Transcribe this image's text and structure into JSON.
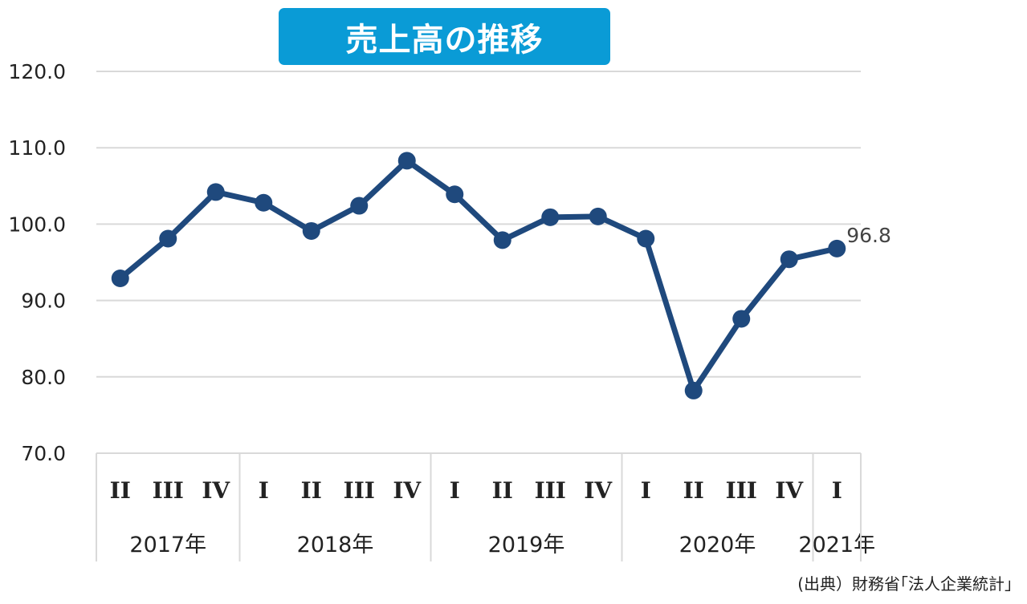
{
  "title": "売上高の推移",
  "source": "(出典）財務省｢法人企業統計｣",
  "colors": {
    "title_bg": "#0a9bd6",
    "line": "#1f497d",
    "grid": "#d9d9d9"
  },
  "chart_data": {
    "type": "line",
    "title": "売上高の推移",
    "xlabel": "",
    "ylabel": "",
    "ylim": [
      70,
      120
    ],
    "yticks": [
      "120.0",
      "110.0",
      "100.0",
      "90.0",
      "80.0",
      "70.0"
    ],
    "grid": true,
    "categories": [
      "II",
      "III",
      "IV",
      "I",
      "II",
      "III",
      "IV",
      "I",
      "II",
      "III",
      "IV",
      "I",
      "II",
      "III",
      "IV",
      "I"
    ],
    "years": [
      {
        "label": "2017年",
        "count": 3
      },
      {
        "label": "2018年",
        "count": 4
      },
      {
        "label": "2019年",
        "count": 4
      },
      {
        "label": "2020年",
        "count": 4
      },
      {
        "label": "2021年",
        "count": 1
      }
    ],
    "values": [
      92.9,
      98.1,
      104.2,
      102.8,
      99.1,
      102.4,
      108.3,
      103.9,
      97.9,
      100.9,
      101.0,
      98.1,
      78.2,
      87.6,
      95.4,
      96.8
    ],
    "data_labels": [
      {
        "index": 15,
        "text": "96.8"
      }
    ]
  }
}
